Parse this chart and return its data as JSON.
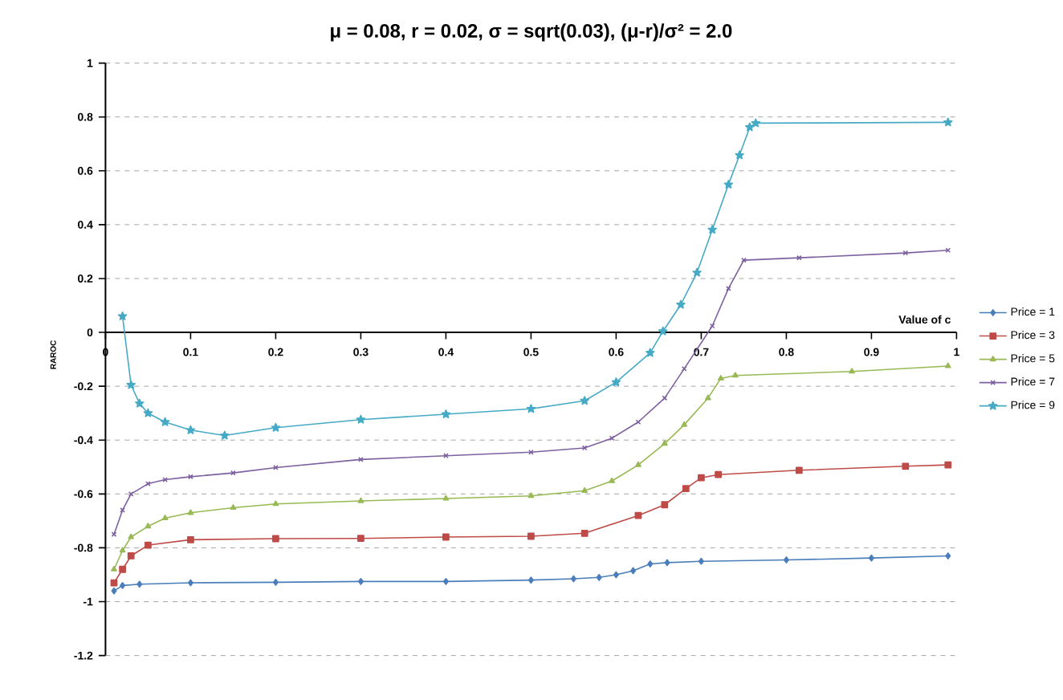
{
  "chart_data": {
    "type": "line",
    "title": "μ = 0.08, r = 0.02, σ = sqrt(0.03), (μ-r)/σ² = 2.0",
    "xlabel": "Value of c",
    "ylabel": "RAROC",
    "xlim": [
      0,
      1
    ],
    "xticks": [
      0,
      0.1,
      0.2,
      0.3,
      0.4,
      0.5,
      0.6,
      0.7,
      0.8,
      0.9,
      1
    ],
    "ylim": [
      -1.2,
      1
    ],
    "yticks": [
      -1.2,
      -1,
      -0.8,
      -0.6,
      -0.4,
      -0.2,
      0,
      0.2,
      0.4,
      0.6,
      0.8,
      1
    ],
    "grid": "y",
    "legend": "right",
    "line_style": "solid",
    "series": [
      {
        "name": "Price = 1",
        "color": "#4a7ebb",
        "marker": "diamond",
        "x": [
          0.01,
          0.02,
          0.04,
          0.1,
          0.2,
          0.3,
          0.4,
          0.5,
          0.55,
          0.58,
          0.6,
          0.62,
          0.64,
          0.66,
          0.7,
          0.8,
          0.9,
          0.99
        ],
        "values": [
          -0.96,
          -0.94,
          -0.935,
          -0.93,
          -0.928,
          -0.925,
          -0.925,
          -0.92,
          -0.915,
          -0.91,
          -0.9,
          -0.885,
          -0.86,
          -0.855,
          -0.85,
          -0.845,
          -0.838,
          -0.83
        ]
      },
      {
        "name": "Price = 3",
        "color": "#be4b48",
        "marker": "square",
        "x": [
          0.01,
          0.02,
          0.03,
          0.05,
          0.1,
          0.2,
          0.3,
          0.4,
          0.5,
          0.563,
          0.626,
          0.657,
          0.682,
          0.7,
          0.72,
          0.815,
          0.94,
          0.99
        ],
        "values": [
          -0.93,
          -0.88,
          -0.83,
          -0.79,
          -0.77,
          -0.766,
          -0.765,
          -0.76,
          -0.757,
          -0.746,
          -0.68,
          -0.64,
          -0.58,
          -0.54,
          -0.528,
          -0.512,
          -0.497,
          -0.492
        ]
      },
      {
        "name": "Price = 5",
        "color": "#98b954",
        "marker": "triangle",
        "x": [
          0.01,
          0.02,
          0.03,
          0.05,
          0.07,
          0.1,
          0.15,
          0.2,
          0.3,
          0.4,
          0.5,
          0.563,
          0.595,
          0.626,
          0.657,
          0.68,
          0.708,
          0.723,
          0.74,
          0.877,
          0.99
        ],
        "values": [
          -0.88,
          -0.81,
          -0.76,
          -0.72,
          -0.69,
          -0.67,
          -0.651,
          -0.637,
          -0.626,
          -0.617,
          -0.607,
          -0.588,
          -0.552,
          -0.492,
          -0.413,
          -0.343,
          -0.244,
          -0.171,
          -0.16,
          -0.145,
          -0.125
        ]
      },
      {
        "name": "Price = 7",
        "color": "#7d60a0",
        "marker": "cross",
        "x": [
          0.01,
          0.02,
          0.03,
          0.05,
          0.07,
          0.1,
          0.15,
          0.2,
          0.3,
          0.4,
          0.5,
          0.563,
          0.595,
          0.626,
          0.657,
          0.68,
          0.713,
          0.732,
          0.75,
          0.815,
          0.94,
          0.99
        ],
        "values": [
          -0.75,
          -0.66,
          -0.6,
          -0.562,
          -0.547,
          -0.536,
          -0.522,
          -0.502,
          -0.472,
          -0.458,
          -0.445,
          -0.429,
          -0.393,
          -0.333,
          -0.244,
          -0.135,
          0.024,
          0.163,
          0.268,
          0.277,
          0.295,
          0.305
        ]
      },
      {
        "name": "Price = 9",
        "color": "#46aac5",
        "marker": "star",
        "x": [
          0.02,
          0.03,
          0.04,
          0.05,
          0.07,
          0.1,
          0.14,
          0.2,
          0.3,
          0.4,
          0.5,
          0.563,
          0.6,
          0.64,
          0.655,
          0.676,
          0.695,
          0.713,
          0.732,
          0.745,
          0.757,
          0.764,
          0.99
        ],
        "values": [
          0.06,
          -0.195,
          -0.264,
          -0.3,
          -0.333,
          -0.363,
          -0.383,
          -0.354,
          -0.324,
          -0.304,
          -0.284,
          -0.254,
          -0.185,
          -0.076,
          0.004,
          0.103,
          0.222,
          0.381,
          0.549,
          0.658,
          0.762,
          0.777,
          0.78
        ]
      }
    ]
  }
}
